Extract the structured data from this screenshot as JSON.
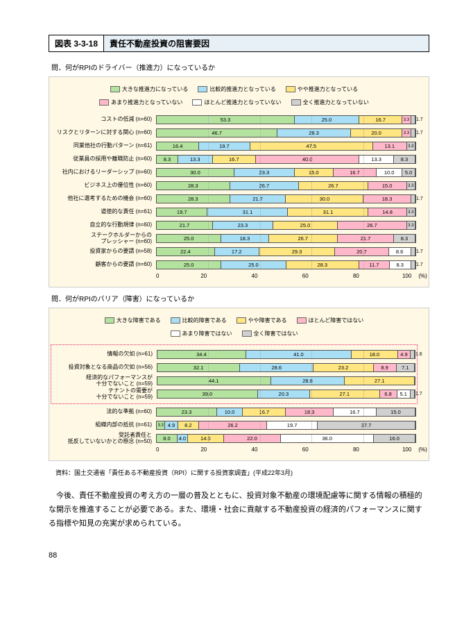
{
  "title": {
    "id": "図表 3-3-18",
    "text": "責任不動産投資の阻害要因"
  },
  "chart1": {
    "question": "問．何がRPIのドライバー（推進力）になっているか",
    "legend": [
      {
        "label": "大きな推進力になっている",
        "color": "#b4e39f"
      },
      {
        "label": "比較的推進力となっている",
        "color": "#a8dff5"
      },
      {
        "label": "やや推進力となっている",
        "color": "#ffe680"
      },
      {
        "label": "あまり推進力となっていない",
        "color": "#ffb8c9"
      },
      {
        "label": "ほとんど推進力となっていない",
        "color": "#ffffff"
      },
      {
        "label": "全く推進力となっていない",
        "color": "#d0d0d0"
      }
    ],
    "rows": [
      {
        "label": "コストの低減 (n=60)",
        "values": [
          53.3,
          25.0,
          16.7,
          3.3,
          0,
          1.7
        ],
        "show_ext": [
          1.7
        ]
      },
      {
        "label": "リスクとリターンに対する関心 (n=60)",
        "values": [
          46.7,
          28.3,
          20.0,
          3.3,
          0,
          1.7
        ],
        "show_ext": [
          1.7
        ]
      },
      {
        "label": "同業他社の行動パターン (n=61)",
        "values": [
          16.4,
          19.7,
          47.5,
          13.1,
          0,
          3.3
        ]
      },
      {
        "label": "従業員の採用や離職防止 (n=60)",
        "values": [
          8.3,
          13.3,
          16.7,
          40.0,
          13.3,
          8.3
        ]
      },
      {
        "label": "社内におけるリーダーシップ (n=60)",
        "values": [
          30.0,
          23.3,
          15.0,
          16.7,
          10.0,
          5.0
        ]
      },
      {
        "label": "ビジネス上の優位性 (n=60)",
        "values": [
          28.3,
          26.7,
          26.7,
          15.0,
          0,
          3.3
        ]
      },
      {
        "label": "他社に選考するための機会 (n=60)",
        "values": [
          28.3,
          21.7,
          30.0,
          18.3,
          0,
          1.7
        ],
        "show_ext": [
          1.7
        ]
      },
      {
        "label": "道徳的な責任 (n=61)",
        "values": [
          19.7,
          31.1,
          31.1,
          14.8,
          0,
          3.3
        ]
      },
      {
        "label": "自立的な行動規律 (n=60)",
        "values": [
          21.7,
          23.3,
          25.0,
          26.7,
          0,
          3.3
        ]
      },
      {
        "label": "ステークホルダーからの\nプレッシャー (n=60)",
        "values": [
          25.0,
          18.3,
          26.7,
          21.7,
          0,
          8.3
        ]
      },
      {
        "label": "投資家からの要請 (n=58)",
        "values": [
          22.4,
          17.2,
          29.3,
          20.7,
          8.6,
          1.7
        ],
        "show_ext": [
          1.7
        ]
      },
      {
        "label": "顧客からの要請 (n=60)",
        "values": [
          25.0,
          25.0,
          28.3,
          11.7,
          8.3,
          1.7
        ],
        "show_ext": [
          1.7
        ]
      }
    ],
    "axis": {
      "ticks": [
        0,
        20,
        40,
        60,
        80,
        100
      ],
      "unit": "(%)"
    }
  },
  "chart2": {
    "question": "問．何がRPIのバリア（障害）になっているか",
    "legend": [
      {
        "label": "大きな障害である",
        "color": "#b4e39f"
      },
      {
        "label": "比較的障害である",
        "color": "#a8dff5"
      },
      {
        "label": "やや障害である",
        "color": "#ffe680"
      },
      {
        "label": "ほとんど障害ではない",
        "color": "#ffb8c9"
      },
      {
        "label": "あまり障害ではない",
        "color": "#ffffff"
      },
      {
        "label": "全く障害ではない",
        "color": "#d0d0d0"
      }
    ],
    "rows_boxed": [
      {
        "label": "情報の欠如 (n=61)",
        "values": [
          34.4,
          41.0,
          18.0,
          4.9,
          0,
          1.6
        ],
        "show_ext": [
          1.6
        ]
      },
      {
        "label": "投資対象となる商品の欠如 (n=56)",
        "values": [
          32.1,
          28.6,
          23.2,
          8.9,
          0,
          7.1
        ]
      },
      {
        "label": "経済的なパフォーマンスが\n十分でないこと (n=59)",
        "values": [
          44.1,
          28.8,
          27.1,
          0,
          0,
          0
        ]
      },
      {
        "label": "テナントの需要が\n十分でないこと (n=59)",
        "values": [
          39.0,
          20.3,
          27.1,
          6.8,
          5.1,
          1.7
        ],
        "show_ext": [
          1.7
        ]
      }
    ],
    "rows_rest": [
      {
        "label": "法的な準拠 (n=60)",
        "values": [
          23.3,
          10.0,
          16.7,
          18.3,
          16.7,
          15.0
        ]
      },
      {
        "label": "組織内部の抵抗 (n=61)",
        "values": [
          3.3,
          4.9,
          8.2,
          26.2,
          19.7,
          37.7
        ]
      },
      {
        "label": "受託者責任と\n抵反していないかとの懸念 (n=50)",
        "values": [
          8.0,
          4.0,
          14.0,
          22.0,
          36.0,
          16.0
        ]
      }
    ],
    "axis": {
      "ticks": [
        0,
        20,
        40,
        60,
        80,
        100
      ],
      "unit": "(%)"
    }
  },
  "source": "資料：国土交通省「責任ある不動産投資（RPI）に関する投資家調査」(平成22年3月)",
  "para1": "今後、責任不動産投資の考え方の一層の普及とともに、投資対象不動産の環境配慮等に関する情報の積極的な開示を推進することが必要である。また、環境・社会に貢献する不動産投資の経済的パフォーマンスに関する指標や知見の充実が求められている。",
  "page_number": "88"
}
